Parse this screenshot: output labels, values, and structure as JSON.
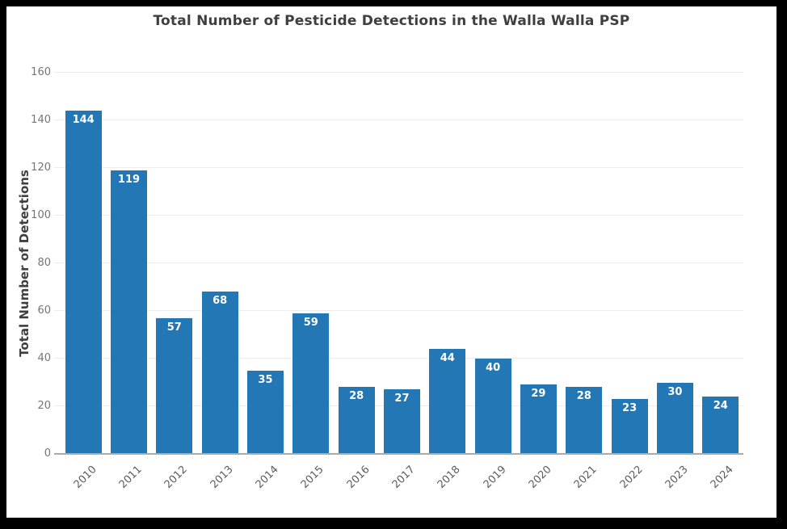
{
  "chart_data": {
    "type": "bar",
    "title": "Total Number of Pesticide Detections in the Walla Walla PSP",
    "xlabel": "",
    "ylabel": "Total Number of Detections",
    "categories": [
      "2010",
      "2011",
      "2012",
      "2013",
      "2014",
      "2015",
      "2016",
      "2017",
      "2018",
      "2019",
      "2020",
      "2021",
      "2022",
      "2023",
      "2024"
    ],
    "values": [
      144,
      119,
      57,
      68,
      35,
      59,
      28,
      27,
      44,
      40,
      29,
      28,
      23,
      30,
      24
    ],
    "ylim": [
      0,
      160
    ],
    "yticks": [
      0,
      20,
      40,
      60,
      80,
      100,
      120,
      140,
      160
    ],
    "grid": true,
    "legend_position": "none",
    "bar_color": "#2377B4",
    "bar_label_color": "#FFFFFF",
    "title_color": "#3F3F3F",
    "tick_label_color": "#757575",
    "gridline_color": "#EDEDED",
    "axis_line_color": "#AAAAAA",
    "frame_color": "#000000",
    "background_color": "#FFFFFF"
  }
}
